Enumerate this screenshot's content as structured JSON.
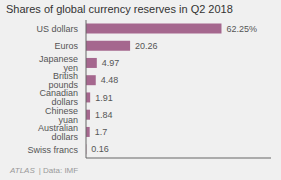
{
  "chart_data": {
    "type": "bar",
    "title": "Shares of global currency reserves in Q2 2018",
    "orientation": "horizontal",
    "categories": [
      "Swiss francs",
      "Australian dollars",
      "Chinese yuan",
      "Canadian dollars",
      "British pounds",
      "Japanese yen",
      "Euros",
      "US dollars"
    ],
    "values": [
      0.16,
      1.7,
      1.84,
      1.91,
      4.48,
      4.97,
      20.26,
      62.25
    ],
    "value_labels": [
      "0.16",
      "1.7",
      "1.84",
      "1.91",
      "4.48",
      "4.97",
      "20.26",
      "62.25%"
    ],
    "data_labels": true,
    "color": "#a5678e",
    "xlim": [
      0,
      85
    ],
    "tick_labels": "y",
    "annotations": [
      "ATLAS",
      "| Data: IMF"
    ]
  }
}
